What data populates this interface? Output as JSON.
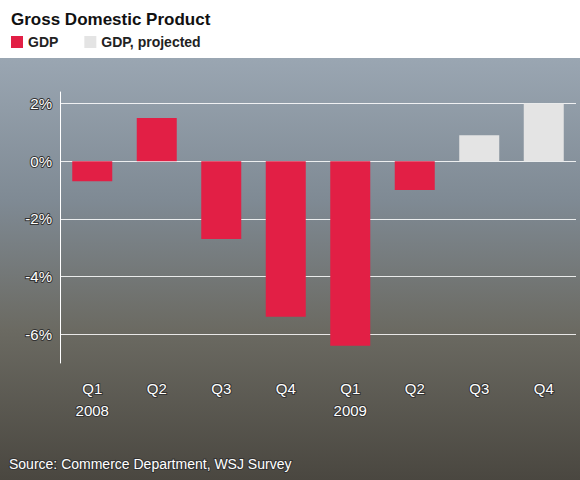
{
  "chart_data": {
    "type": "bar",
    "title": "Gross Domestic Product",
    "source": "Source: Commerce Department, WSJ Survey",
    "categories": [
      "Q1\n2008",
      "Q2",
      "Q3",
      "Q4",
      "Q1\n2009",
      "Q2",
      "Q3",
      "Q4"
    ],
    "series": [
      {
        "name": "GDP",
        "color": "#e21f45",
        "values": [
          -0.7,
          1.5,
          -2.7,
          -5.4,
          -6.4,
          -1.0,
          null,
          null
        ]
      },
      {
        "name": "GDP, projected",
        "color": "#e4e4e4",
        "values": [
          null,
          null,
          null,
          null,
          null,
          null,
          0.9,
          2.0
        ]
      }
    ],
    "ylim": [
      -7,
      2.4
    ],
    "yticks": [
      {
        "value": -6,
        "label": "-6%"
      },
      {
        "value": -4,
        "label": "-4%"
      },
      {
        "value": -2,
        "label": "-2%"
      },
      {
        "value": 0,
        "label": "0%"
      },
      {
        "value": 2,
        "label": "2%"
      }
    ],
    "grid": true,
    "legend": "top-left"
  }
}
